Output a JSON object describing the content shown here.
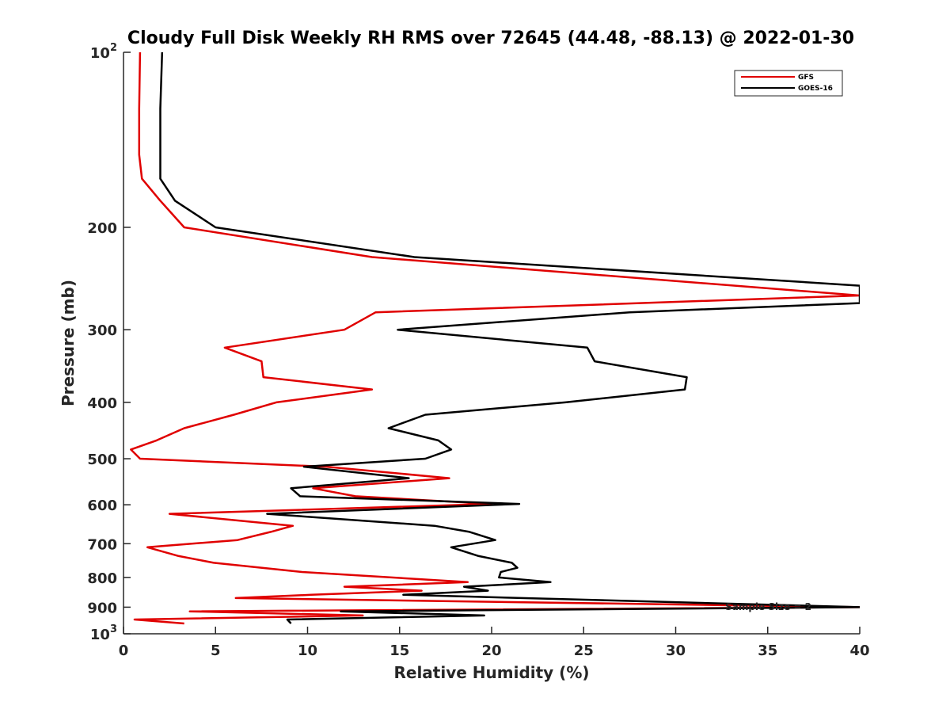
{
  "chart_data": {
    "type": "line",
    "title": "Cloudy Full Disk Weekly RH RMS over 72645 (44.48, -88.13) @ 2022-01-30",
    "xlabel": "Relative Humidity (%)",
    "ylabel": "Pressure (mb)",
    "xlim": [
      0,
      40
    ],
    "ylim": [
      100,
      1000
    ],
    "y_scale": "log",
    "y_reversed": true,
    "x_ticks": [
      0,
      5,
      10,
      15,
      20,
      25,
      30,
      35,
      40
    ],
    "y_ticks": [
      100,
      200,
      300,
      400,
      500,
      600,
      700,
      800,
      900,
      1000
    ],
    "y_tick_labels": [
      {
        "base": "10",
        "exp": "2"
      },
      {
        "base": "200",
        "exp": ""
      },
      {
        "base": "300",
        "exp": ""
      },
      {
        "base": "400",
        "exp": ""
      },
      {
        "base": "500",
        "exp": ""
      },
      {
        "base": "600",
        "exp": ""
      },
      {
        "base": "700",
        "exp": ""
      },
      {
        "base": "800",
        "exp": ""
      },
      {
        "base": "900",
        "exp": ""
      },
      {
        "base": "10",
        "exp": "3"
      }
    ],
    "legend_position": "top-right",
    "grid": false,
    "annotation": "Sample Size = 2",
    "series": [
      {
        "name": "GFS",
        "color": "#e00000",
        "points": [
          [
            0.9,
            100
          ],
          [
            0.85,
            125
          ],
          [
            0.85,
            150
          ],
          [
            1.0,
            165
          ],
          [
            2.0,
            180
          ],
          [
            3.3,
            200
          ],
          [
            13.5,
            225
          ],
          [
            40,
            262
          ],
          [
            13.7,
            280
          ],
          [
            12.0,
            300
          ],
          [
            5.5,
            322
          ],
          [
            7.5,
            340
          ],
          [
            7.6,
            362
          ],
          [
            13.5,
            380
          ],
          [
            8.3,
            400
          ],
          [
            6.0,
            420
          ],
          [
            3.3,
            443
          ],
          [
            1.8,
            465
          ],
          [
            0.4,
            482
          ],
          [
            0.9,
            500
          ],
          [
            11.0,
            516
          ],
          [
            17.7,
            540
          ],
          [
            10.3,
            562
          ],
          [
            12.6,
            580
          ],
          [
            20.0,
            598
          ],
          [
            2.5,
            622
          ],
          [
            9.2,
            652
          ],
          [
            8.0,
            668
          ],
          [
            6.2,
            690
          ],
          [
            1.3,
            710
          ],
          [
            3.0,
            735
          ],
          [
            4.9,
            755
          ],
          [
            9.7,
            783
          ],
          [
            18.7,
            815
          ],
          [
            12.0,
            830
          ],
          [
            16.2,
            843
          ],
          [
            10.2,
            857
          ],
          [
            6.1,
            868
          ],
          [
            40,
            900
          ],
          [
            3.6,
            915
          ],
          [
            13.0,
            930
          ],
          [
            0.6,
            945
          ],
          [
            3.3,
            960
          ]
        ]
      },
      {
        "name": "GOES-16",
        "color": "#000000",
        "points": [
          [
            2.1,
            100
          ],
          [
            2.0,
            125
          ],
          [
            2.0,
            150
          ],
          [
            2.0,
            165
          ],
          [
            2.8,
            180
          ],
          [
            5.0,
            200
          ],
          [
            15.8,
            225
          ],
          [
            40,
            252
          ],
          [
            40,
            270
          ],
          [
            27.5,
            280
          ],
          [
            14.9,
            300
          ],
          [
            25.2,
            322
          ],
          [
            25.6,
            340
          ],
          [
            30.6,
            362
          ],
          [
            30.5,
            380
          ],
          [
            24.0,
            400
          ],
          [
            16.4,
            420
          ],
          [
            14.4,
            443
          ],
          [
            17.1,
            465
          ],
          [
            17.8,
            482
          ],
          [
            16.4,
            500
          ],
          [
            9.8,
            516
          ],
          [
            15.5,
            540
          ],
          [
            9.1,
            562
          ],
          [
            9.6,
            580
          ],
          [
            21.5,
            598
          ],
          [
            7.8,
            622
          ],
          [
            16.9,
            652
          ],
          [
            18.8,
            668
          ],
          [
            20.2,
            690
          ],
          [
            17.8,
            710
          ],
          [
            19.3,
            735
          ],
          [
            21.1,
            755
          ],
          [
            21.4,
            770
          ],
          [
            20.5,
            783
          ],
          [
            20.4,
            800
          ],
          [
            23.2,
            815
          ],
          [
            18.5,
            830
          ],
          [
            19.8,
            843
          ],
          [
            15.2,
            857
          ],
          [
            40,
            900
          ],
          [
            11.8,
            915
          ],
          [
            19.6,
            930
          ],
          [
            8.9,
            945
          ],
          [
            9.1,
            960
          ]
        ]
      }
    ]
  }
}
